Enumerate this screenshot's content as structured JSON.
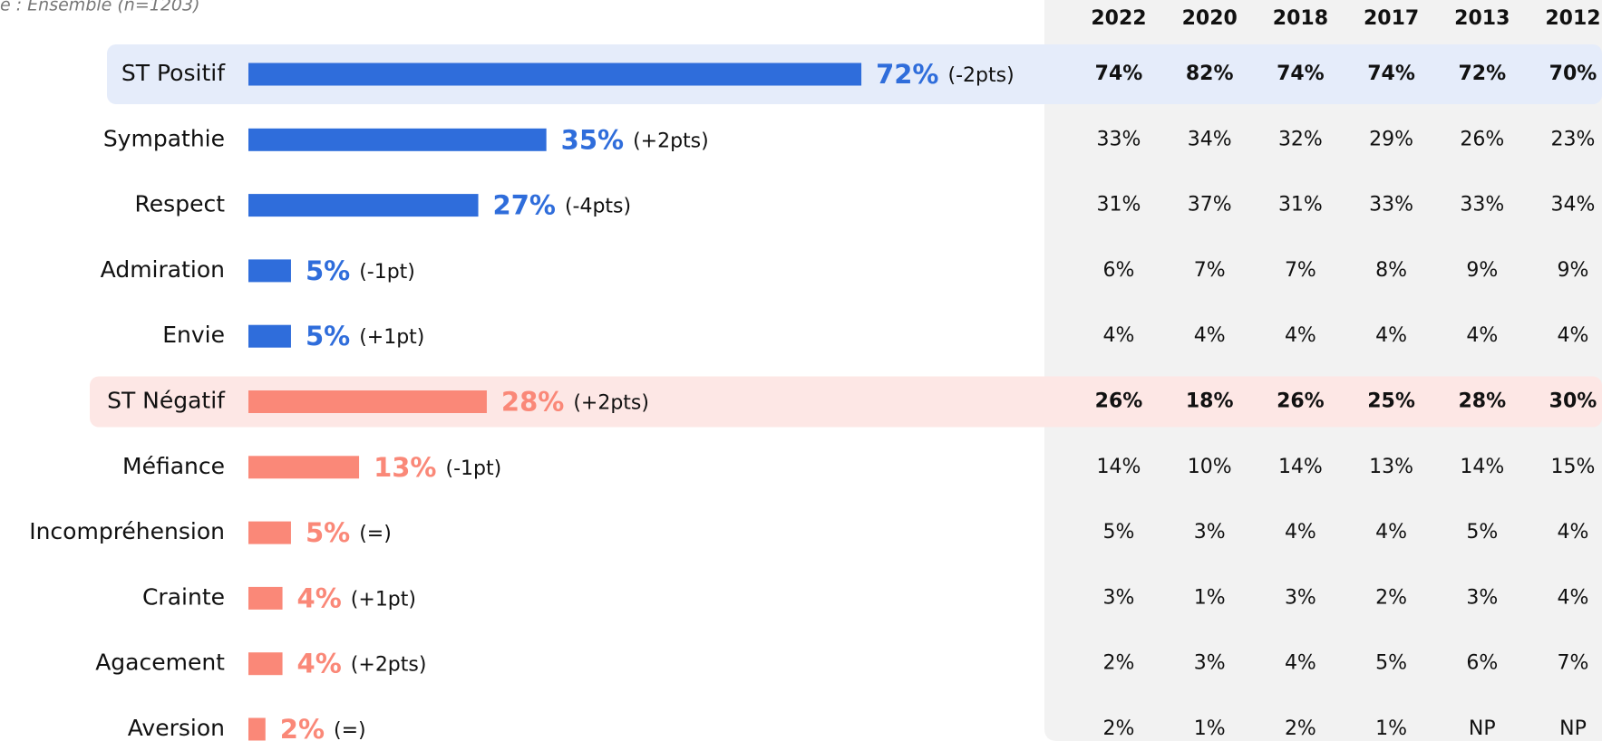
{
  "chart_data": {
    "type": "bar",
    "subtitle": "e : Ensemble (n=1203)",
    "categories": [
      "ST Positif",
      "Sympathie",
      "Respect",
      "Admiration",
      "Envie",
      "ST Négatif",
      "Méfiance",
      "Incompréhension",
      "Crainte",
      "Agacement",
      "Aversion"
    ],
    "values": [
      72,
      35,
      27,
      5,
      5,
      28,
      13,
      5,
      4,
      4,
      2
    ],
    "value_labels": [
      "72%",
      "35%",
      "27%",
      "5%",
      "5%",
      "28%",
      "13%",
      "5%",
      "4%",
      "4%",
      "2%"
    ],
    "changes": [
      "(-2pts)",
      "(+2pts)",
      "(-4pts)",
      "(-1pt)",
      "(+1pt)",
      "(+2pts)",
      "(-1pt)",
      "(=)",
      "(+1pt)",
      "(+2pts)",
      "(=)"
    ],
    "colors": [
      "#2f6ddb",
      "#2f6ddb",
      "#2f6ddb",
      "#2f6ddb",
      "#2f6ddb",
      "#fa8878",
      "#fa8878",
      "#fa8878",
      "#fa8878",
      "#fa8878",
      "#fa8878"
    ],
    "highlight_colors": [
      "#e5ecfa",
      null,
      null,
      null,
      null,
      "#fde7e5",
      null,
      null,
      null,
      null,
      null
    ],
    "xlim": [
      0,
      100
    ]
  },
  "table": {
    "header": [
      "2022",
      "2020",
      "2018",
      "2017",
      "2013",
      "2012"
    ],
    "rows": [
      [
        "74%",
        "82%",
        "74%",
        "74%",
        "72%",
        "70%"
      ],
      [
        "33%",
        "34%",
        "32%",
        "29%",
        "26%",
        "23%"
      ],
      [
        "31%",
        "37%",
        "31%",
        "33%",
        "33%",
        "34%"
      ],
      [
        "6%",
        "7%",
        "7%",
        "8%",
        "9%",
        "9%"
      ],
      [
        "4%",
        "4%",
        "4%",
        "4%",
        "4%",
        "4%"
      ],
      [
        "26%",
        "18%",
        "26%",
        "25%",
        "28%",
        "30%"
      ],
      [
        "14%",
        "10%",
        "14%",
        "13%",
        "14%",
        "15%"
      ],
      [
        "5%",
        "3%",
        "4%",
        "4%",
        "5%",
        "4%"
      ],
      [
        "3%",
        "1%",
        "3%",
        "2%",
        "3%",
        "4%"
      ],
      [
        "2%",
        "3%",
        "4%",
        "5%",
        "6%",
        "7%"
      ],
      [
        "2%",
        "1%",
        "2%",
        "1%",
        "NP",
        "NP"
      ]
    ]
  }
}
